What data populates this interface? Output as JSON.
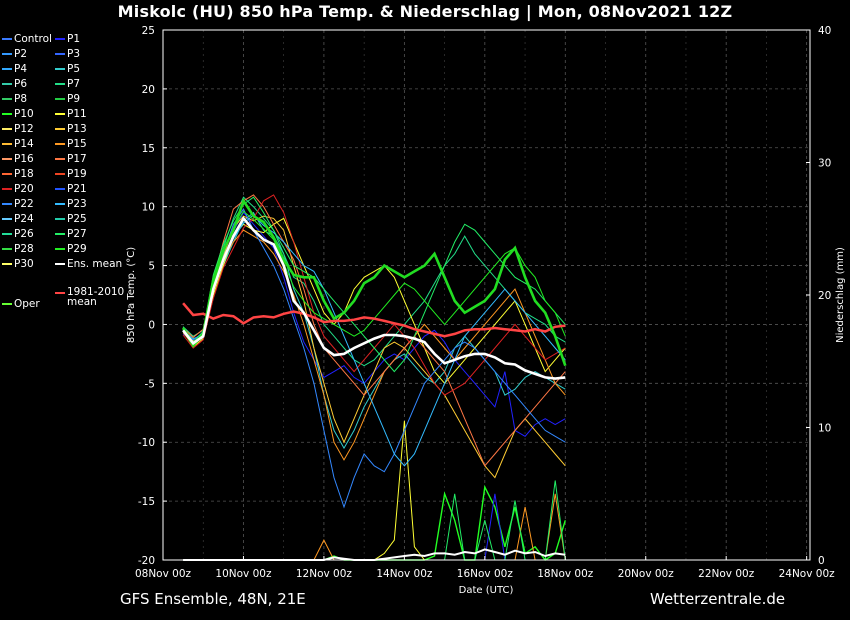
{
  "title": "Miskolc  (HU)  850 hPa Temp. & Niederschlag | Mon, 08Nov2021 12Z",
  "footer_left": "GFS Ensemble, 48N, 21E",
  "footer_right": "Wetterzentrale.de",
  "legend": [
    {
      "label": "Control",
      "color": "#3a7bff"
    },
    {
      "label": "P1",
      "color": "#2222ff"
    },
    {
      "label": "P2",
      "color": "#3399ff"
    },
    {
      "label": "P3",
      "color": "#3366ff"
    },
    {
      "label": "P4",
      "color": "#33aaff"
    },
    {
      "label": "P5",
      "color": "#33cccc"
    },
    {
      "label": "P6",
      "color": "#33ccaa"
    },
    {
      "label": "P7",
      "color": "#22dd88"
    },
    {
      "label": "P8",
      "color": "#33cc66"
    },
    {
      "label": "P9",
      "color": "#22cc44"
    },
    {
      "label": "P10",
      "color": "#22ff22"
    },
    {
      "label": "P11",
      "color": "#ffff33"
    },
    {
      "label": "P12",
      "color": "#ffee66"
    },
    {
      "label": "P13",
      "color": "#ffcc33"
    },
    {
      "label": "P14",
      "color": "#ffbb33"
    },
    {
      "label": "P15",
      "color": "#ff9922"
    },
    {
      "label": "P16",
      "color": "#ff9966"
    },
    {
      "label": "P17",
      "color": "#ff7744"
    },
    {
      "label": "P18",
      "color": "#ff6633"
    },
    {
      "label": "P19",
      "color": "#ee4422"
    },
    {
      "label": "P20",
      "color": "#dd2222"
    },
    {
      "label": "P21",
      "color": "#2255ff"
    },
    {
      "label": "P22",
      "color": "#3388ff"
    },
    {
      "label": "P23",
      "color": "#33bbff"
    },
    {
      "label": "P24",
      "color": "#66ccff"
    },
    {
      "label": "P25",
      "color": "#22ccaa"
    },
    {
      "label": "P26",
      "color": "#22dd99"
    },
    {
      "label": "P27",
      "color": "#22ee66"
    },
    {
      "label": "P28",
      "color": "#33dd44"
    },
    {
      "label": "P29",
      "color": "#22ee22"
    },
    {
      "label": "P30",
      "color": "#ffff66"
    },
    {
      "label": "Ens. mean",
      "color": "#ffffff"
    },
    {
      "label": "1981-2010 mean",
      "color": "#ff4444"
    },
    {
      "label": "Oper",
      "color": "#66ff33"
    }
  ],
  "chart_data": {
    "type": "line",
    "x_ticks": [
      "08Nov 00z",
      "10Nov 00z",
      "12Nov 00z",
      "14Nov 00z",
      "16Nov 00z",
      "18Nov 00z",
      "20Nov 00z",
      "22Nov 00z",
      "24Nov 00z"
    ],
    "xlabel": "Date (UTC)",
    "ylabel": "850 hPa Temp. (°C)",
    "ylabel_right": "Niederschlag (mm)",
    "ylim": [
      -20,
      25
    ],
    "ylim_right": [
      0,
      40
    ],
    "y_ticks": [
      -20,
      -15,
      -10,
      -5,
      0,
      5,
      10,
      15,
      20,
      25
    ],
    "y_ticks_right": [
      0,
      10,
      20,
      30,
      40
    ],
    "grid": true,
    "x_start_hours": 12,
    "step_hours": 6,
    "ens_mean": [
      -0.5,
      -1.6,
      -1.0,
      3.0,
      5.5,
      7.5,
      9.0,
      8.0,
      7.2,
      6.8,
      5.0,
      2.0,
      1.0,
      -0.5,
      -2.0,
      -2.6,
      -2.5,
      -2.0,
      -1.6,
      -1.2,
      -0.9,
      -0.9,
      -1.0,
      -1.2,
      -1.5,
      -2.5,
      -3.3,
      -3.0,
      -2.7,
      -2.5,
      -2.5,
      -2.8,
      -3.3,
      -3.4,
      -3.9,
      -4.2,
      -4.5,
      -4.6,
      -4.5
    ],
    "oper": [
      -0.3,
      -1.8,
      -0.8,
      3.8,
      6.3,
      8.0,
      10.5,
      9.2,
      8.7,
      7.4,
      5.5,
      4.2,
      4.0,
      4.0,
      2.0,
      0.5,
      1.0,
      2.0,
      3.5,
      4.0,
      5.0,
      4.5,
      4.0,
      4.5,
      5.0,
      6.0,
      4.0,
      2.0,
      1.0,
      1.5,
      2.0,
      3.0,
      5.5,
      6.5,
      4.0,
      2.0,
      1.0,
      -1.0,
      -3.5
    ],
    "clim_mean": [
      1.8,
      0.8,
      0.9,
      0.5,
      0.8,
      0.7,
      0.1,
      0.6,
      0.7,
      0.6,
      0.9,
      1.1,
      0.9,
      0.6,
      0.2,
      0.3,
      0.3,
      0.4,
      0.6,
      0.5,
      0.3,
      0.1,
      -0.1,
      -0.4,
      -0.6,
      -0.8,
      -1.0,
      -0.8,
      -0.5,
      -0.4,
      -0.4,
      -0.3,
      -0.4,
      -0.5,
      -0.6,
      -0.4,
      -0.6,
      -0.2,
      -0.1
    ],
    "series": [
      {
        "name": "P1",
        "values": [
          -0.8,
          -1.5,
          -0.6,
          4.0,
          6.2,
          7.9,
          9.5,
          8.5,
          7.5,
          6.5,
          4.0,
          1.0,
          -1.5,
          -3.0,
          -4.5,
          -4.0,
          -3.5,
          -4.5,
          -5.0,
          -4.0,
          -3.0,
          -2.5,
          -3.0,
          -2.0,
          -1.0,
          -0.5,
          -1.5,
          -3.0,
          -4.0,
          -5.0,
          -6.0,
          -7.0,
          -4.0,
          -9.0,
          -9.5,
          -8.5,
          -8.0,
          -8.5,
          -8.0
        ]
      },
      {
        "name": "P5",
        "values": [
          -0.5,
          -1.2,
          -0.9,
          3.5,
          5.0,
          7.0,
          8.8,
          9.5,
          8.0,
          7.5,
          6.0,
          3.0,
          1.0,
          -2.0,
          -6.0,
          -9.0,
          -10.5,
          -9.0,
          -7.0,
          -5.5,
          -4.0,
          -3.0,
          -2.5,
          -3.5,
          -4.5,
          -5.0,
          -4.0,
          -2.0,
          -1.0,
          -2.0,
          -3.0,
          -4.0,
          -6.0,
          -5.5,
          -4.5,
          -4.0,
          -4.5,
          -5.0,
          -5.5
        ]
      },
      {
        "name": "P7",
        "values": [
          -0.2,
          -1.0,
          -0.5,
          3.0,
          6.5,
          9.0,
          10.8,
          10.0,
          9.0,
          8.0,
          6.0,
          4.0,
          3.5,
          2.0,
          0.0,
          -1.0,
          -2.0,
          -3.0,
          -3.5,
          -3.0,
          -2.0,
          -1.0,
          0.0,
          1.0,
          2.0,
          3.5,
          5.0,
          6.0,
          7.5,
          6.0,
          5.0,
          4.0,
          3.0,
          2.0,
          1.0,
          0.5,
          0.0,
          -1.0,
          -1.5
        ]
      },
      {
        "name": "P11",
        "values": [
          -0.6,
          -1.9,
          -1.2,
          2.5,
          5.0,
          7.5,
          8.5,
          8.0,
          7.8,
          8.5,
          9.0,
          7.0,
          5.0,
          3.0,
          1.0,
          0.0,
          1.0,
          3.0,
          4.0,
          4.5,
          5.0,
          4.0,
          2.0,
          0.0,
          -2.0,
          -4.0,
          -5.0,
          -4.0,
          -3.0,
          -2.0,
          -1.0,
          0.0,
          1.0,
          2.0,
          0.0,
          -2.0,
          -4.0,
          -3.0,
          -2.0
        ]
      },
      {
        "name": "P13",
        "values": [
          -0.4,
          -1.4,
          -1.0,
          3.2,
          5.8,
          8.2,
          9.2,
          8.8,
          9.2,
          9.0,
          8.0,
          5.0,
          2.0,
          -2.0,
          -5.0,
          -8.0,
          -10.0,
          -8.0,
          -6.0,
          -4.0,
          -2.0,
          -1.5,
          -2.0,
          -3.0,
          -4.0,
          -5.0,
          -6.0,
          -7.5,
          -9.0,
          -10.5,
          -12.0,
          -13.0,
          -11.0,
          -9.0,
          -8.0,
          -9.0,
          -10.0,
          -11.0,
          -12.0
        ]
      },
      {
        "name": "P15",
        "values": [
          -0.7,
          -1.7,
          -0.8,
          2.8,
          5.5,
          7.0,
          8.0,
          7.5,
          7.0,
          6.0,
          4.5,
          2.5,
          0.0,
          -3.0,
          -6.0,
          -10.0,
          -11.5,
          -10.0,
          -8.0,
          -6.0,
          -4.0,
          -3.0,
          -2.0,
          -1.0,
          0.0,
          -1.0,
          -2.0,
          -3.0,
          -2.0,
          -1.0,
          0.0,
          1.0,
          2.0,
          3.0,
          1.0,
          -1.0,
          -3.0,
          -5.0,
          -6.0
        ]
      },
      {
        "name": "P17",
        "values": [
          -0.3,
          -1.1,
          -0.4,
          3.8,
          7.0,
          9.8,
          10.5,
          11.0,
          10.0,
          8.5,
          7.0,
          5.5,
          3.0,
          0.0,
          -2.0,
          -3.0,
          -4.0,
          -5.0,
          -6.0,
          -5.0,
          -4.0,
          -3.0,
          -2.0,
          -1.0,
          -2.0,
          -3.0,
          -4.0,
          -6.0,
          -8.0,
          -10.0,
          -12.0,
          -11.0,
          -10.0,
          -9.0,
          -8.0,
          -7.0,
          -6.0,
          -5.0,
          -4.0
        ]
      },
      {
        "name": "P20",
        "values": [
          -0.9,
          -2.0,
          -1.3,
          2.2,
          4.8,
          6.5,
          8.2,
          9.0,
          10.5,
          11.0,
          9.5,
          7.0,
          4.0,
          1.0,
          -1.0,
          -2.0,
          -3.0,
          -4.0,
          -3.0,
          -2.0,
          -1.0,
          0.0,
          -1.0,
          -2.0,
          -3.5,
          -5.0,
          -6.0,
          -5.5,
          -5.0,
          -4.0,
          -3.0,
          -2.0,
          -1.0,
          0.0,
          -1.0,
          -2.0,
          -3.0,
          -2.5,
          -2.0
        ]
      },
      {
        "name": "P22",
        "values": [
          -0.5,
          -1.3,
          -0.7,
          3.6,
          6.0,
          8.5,
          9.8,
          8.0,
          6.5,
          5.0,
          3.0,
          0.5,
          -2.0,
          -5.0,
          -9.0,
          -13.0,
          -15.5,
          -13.0,
          -11.0,
          -12.0,
          -12.5,
          -11.0,
          -9.0,
          -7.0,
          -5.0,
          -4.0,
          -3.0,
          -2.0,
          -1.5,
          -2.0,
          -3.0,
          -4.0,
          -5.0,
          -6.0,
          -7.0,
          -8.0,
          -9.0,
          -9.5,
          -10.0
        ]
      },
      {
        "name": "P23",
        "values": [
          -0.6,
          -1.6,
          -1.1,
          3.1,
          5.3,
          7.3,
          8.6,
          9.3,
          8.4,
          7.8,
          7.0,
          6.0,
          5.0,
          4.5,
          3.0,
          1.0,
          -1.0,
          -3.0,
          -5.0,
          -7.0,
          -9.0,
          -11.0,
          -12.0,
          -11.0,
          -9.0,
          -7.0,
          -5.0,
          -3.0,
          -1.0,
          0.0,
          1.0,
          2.0,
          3.0,
          2.0,
          1.0,
          0.0,
          -1.0,
          -2.0,
          -3.0
        ]
      },
      {
        "name": "P27",
        "values": [
          -0.2,
          -1.5,
          -0.6,
          4.2,
          6.8,
          8.8,
          10.2,
          10.8,
          9.5,
          8.0,
          6.5,
          5.0,
          4.5,
          4.0,
          3.0,
          2.0,
          1.0,
          0.0,
          -1.0,
          -2.0,
          -3.0,
          -4.0,
          -3.0,
          -1.0,
          1.0,
          3.0,
          5.0,
          7.0,
          8.5,
          8.0,
          7.0,
          6.0,
          5.0,
          4.0,
          3.5,
          3.0,
          2.0,
          1.0,
          0.0
        ]
      },
      {
        "name": "P29",
        "values": [
          -0.4,
          -1.8,
          -0.9,
          3.4,
          6.1,
          8.1,
          9.6,
          8.9,
          8.1,
          7.2,
          5.2,
          3.2,
          2.0,
          1.0,
          0.5,
          0.0,
          -0.5,
          -1.0,
          -0.5,
          0.5,
          1.5,
          2.5,
          3.5,
          3.0,
          2.0,
          1.0,
          0.0,
          1.0,
          2.0,
          3.0,
          4.0,
          5.0,
          6.0,
          6.5,
          5.0,
          4.0,
          2.0,
          1.0,
          -1.0
        ]
      }
    ],
    "precip_oper": [
      0,
      0,
      0,
      0,
      0,
      0,
      0,
      0,
      0,
      0,
      0,
      0,
      0,
      0,
      0,
      0.3,
      0,
      0,
      0,
      0,
      0,
      0,
      0,
      0,
      0,
      0.3,
      5.0,
      3.0,
      0,
      0,
      5.5,
      4.0,
      1.0,
      4.0,
      0.5,
      1.0,
      0,
      0.5,
      3.0
    ],
    "precip_mean": [
      0,
      0,
      0,
      0,
      0,
      0,
      0,
      0,
      0,
      0,
      0,
      0,
      0,
      0,
      0,
      0.2,
      0.1,
      0,
      0,
      0,
      0.1,
      0.2,
      0.3,
      0.4,
      0.3,
      0.5,
      0.5,
      0.4,
      0.6,
      0.5,
      0.8,
      0.6,
      0.4,
      0.7,
      0.5,
      0.6,
      0.3,
      0.5,
      0.4
    ],
    "precip_members": [
      {
        "name": "P11",
        "color": "#ffff33",
        "values": [
          0,
          0,
          0,
          0,
          0,
          0,
          0,
          0,
          0,
          0,
          0,
          0,
          0,
          0,
          0,
          0,
          0,
          0,
          0,
          0,
          0.5,
          1.5,
          10.5,
          1.0,
          0,
          0,
          0,
          0,
          0,
          0,
          0,
          0,
          0,
          0,
          0,
          0,
          0,
          0,
          0
        ]
      },
      {
        "name": "P1",
        "color": "#2222ff",
        "values": [
          0,
          0,
          0,
          0,
          0,
          0,
          0,
          0,
          0,
          0,
          0,
          0,
          0,
          0,
          0,
          0,
          0,
          0,
          0,
          0,
          0,
          0,
          0,
          0,
          0,
          0,
          0,
          0,
          0,
          0,
          0,
          5.0,
          0,
          0,
          0,
          0,
          0,
          0,
          0
        ]
      },
      {
        "name": "P15",
        "color": "#ff9922",
        "values": [
          0,
          0,
          0,
          0,
          0,
          0,
          0,
          0,
          0,
          0,
          0,
          0,
          0,
          0,
          1.5,
          0,
          0,
          0,
          0,
          0,
          0,
          0,
          0,
          0,
          0,
          0,
          0,
          0,
          0,
          0,
          0,
          0,
          0,
          0,
          4.0,
          0,
          0,
          5.0,
          0
        ]
      },
      {
        "name": "P27",
        "color": "#22ee66",
        "values": [
          0,
          0,
          0,
          0,
          0,
          0,
          0,
          0,
          0,
          0,
          0,
          0,
          0,
          0,
          0,
          0,
          0,
          0,
          0,
          0,
          0,
          0,
          0,
          0,
          0,
          0,
          0,
          5.0,
          0,
          0,
          3.0,
          0,
          0,
          4.5,
          0,
          0,
          0,
          6.0,
          0
        ]
      }
    ]
  }
}
